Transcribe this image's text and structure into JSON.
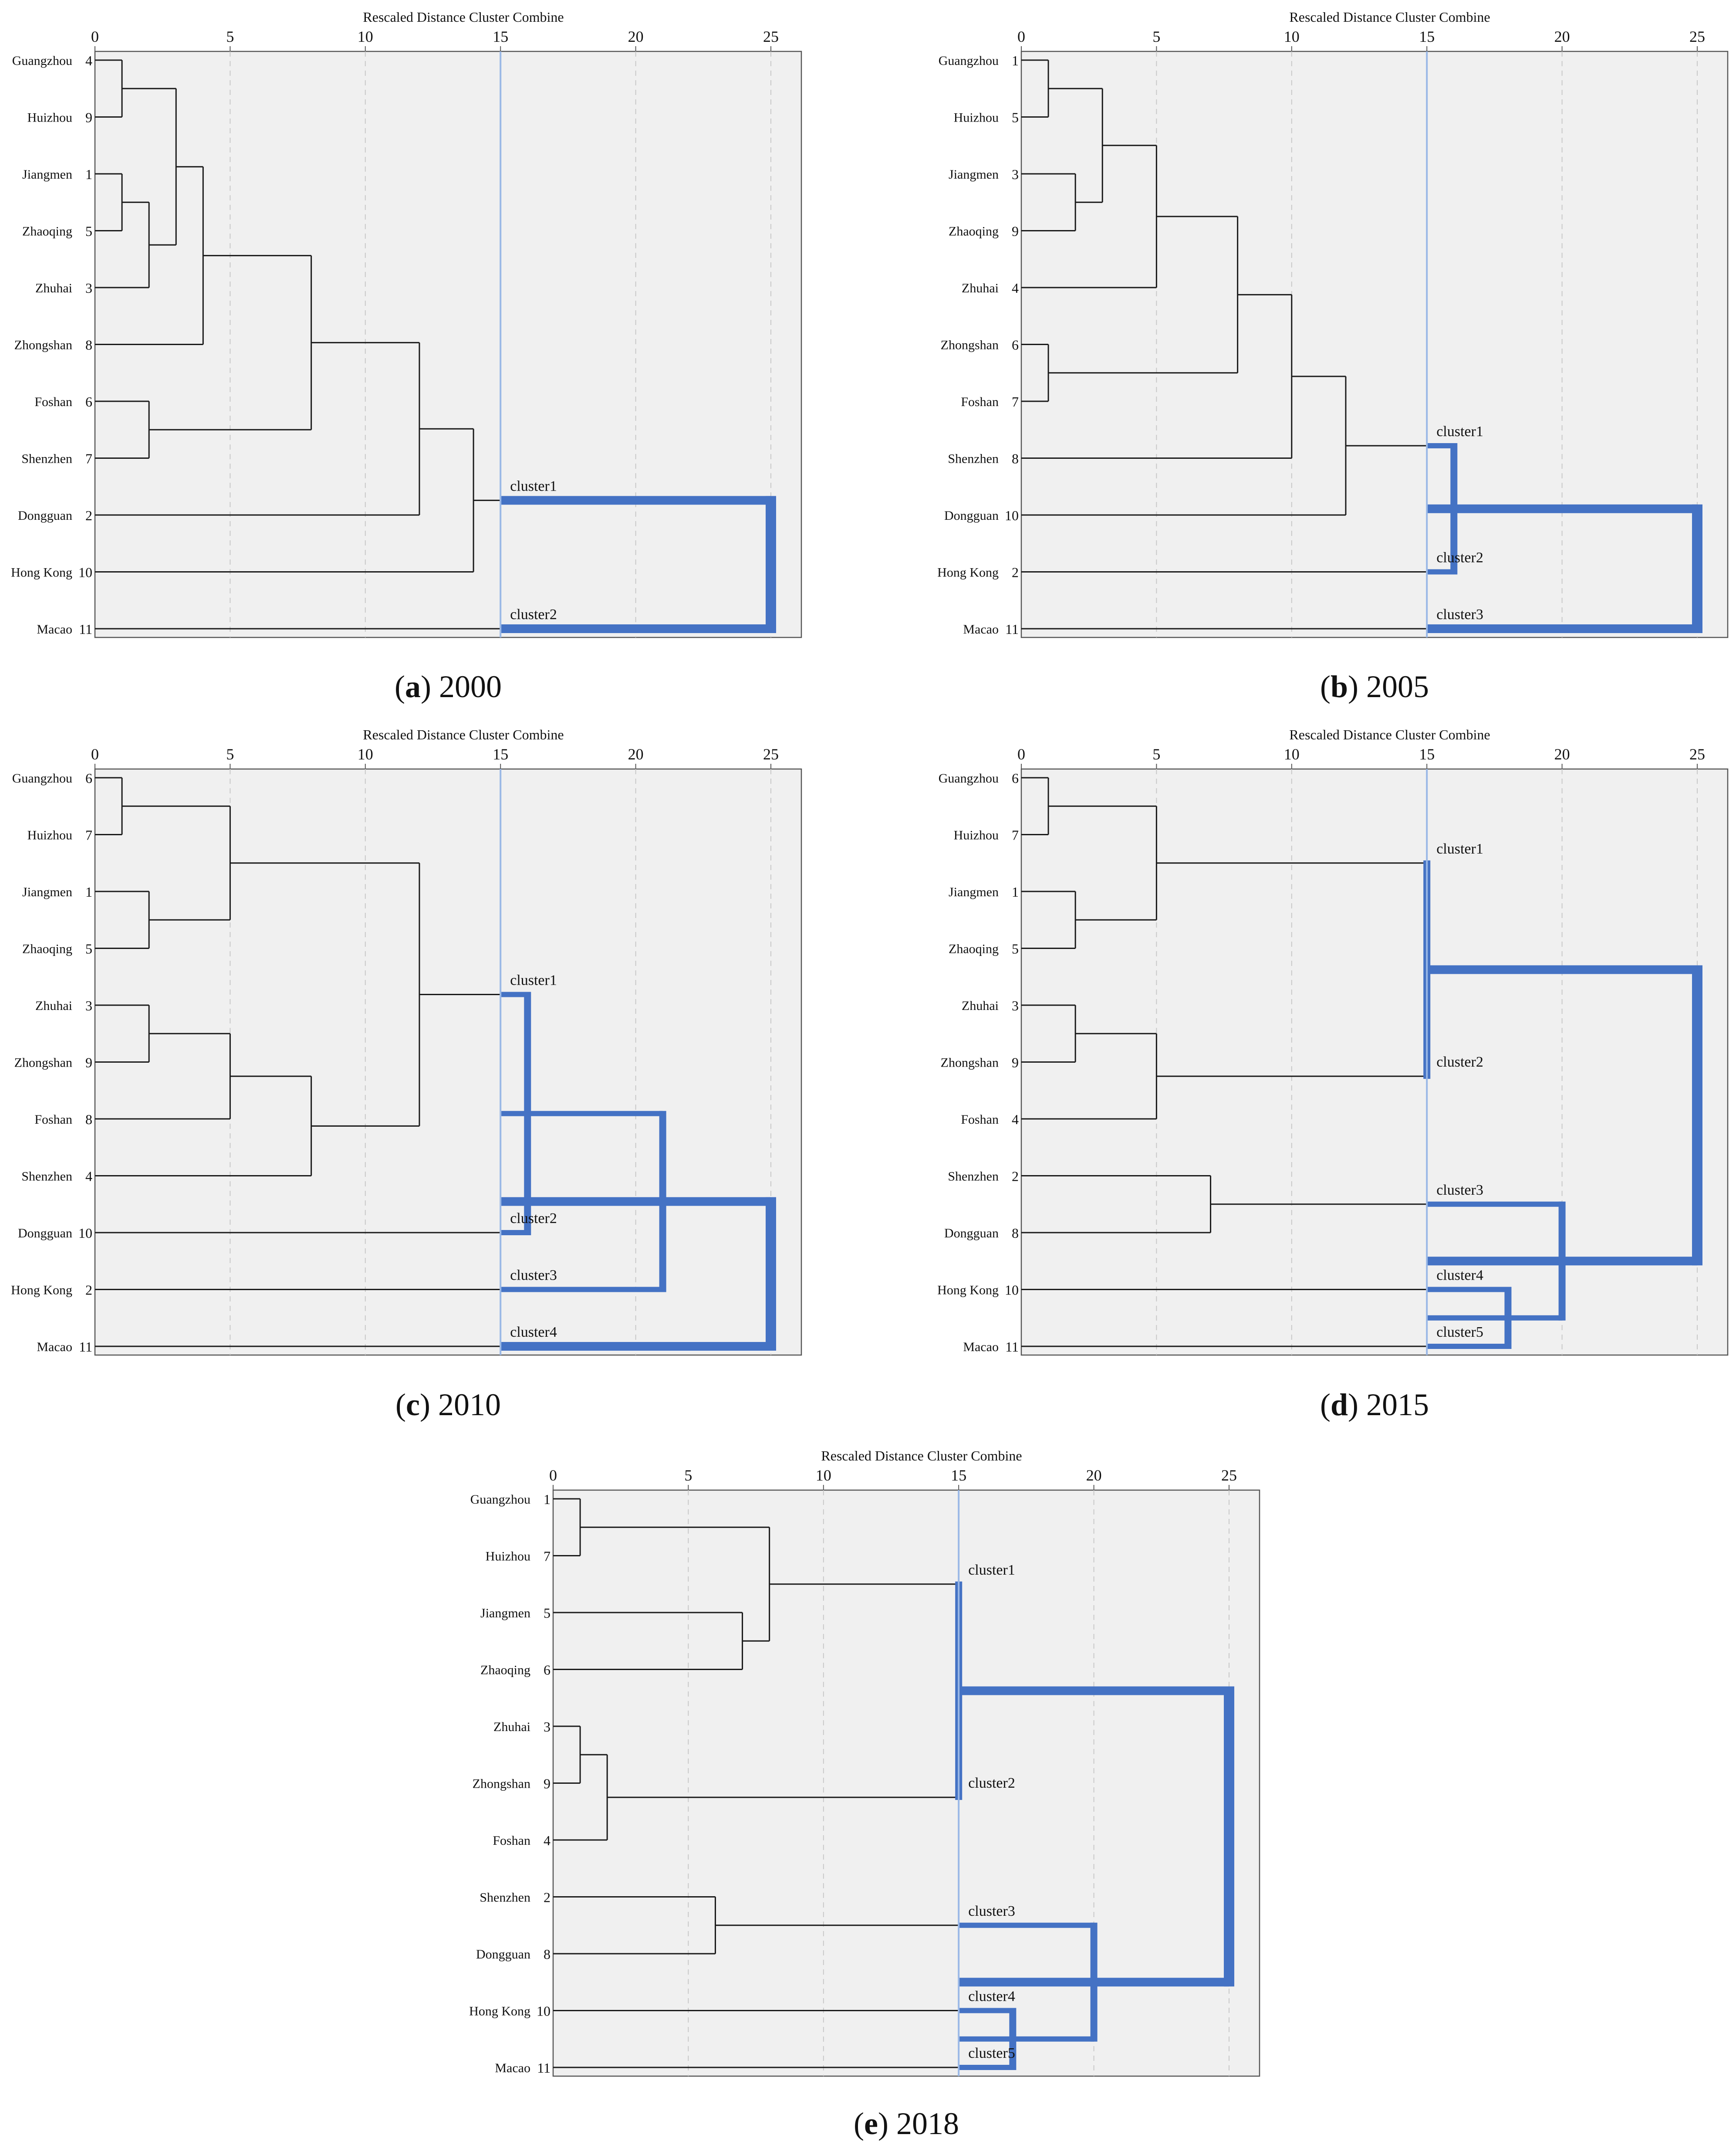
{
  "figure": {
    "type": "dendrogram_panels",
    "colors": {
      "plot_background": "#f0f0f0",
      "plot_border": "#555555",
      "black_link": "#1a1a1a",
      "cluster_link": "#4472c4",
      "cut_line": "#9ab8e6",
      "grid": "#c8c8c8",
      "text": "#111111"
    }
  },
  "chart_data": [
    {
      "type": "dendrogram",
      "panel_letter": "a",
      "panel_year": "2000",
      "title": "Rescaled Distance Cluster Combine",
      "xlim": [
        0,
        25
      ],
      "xticks": [
        "0",
        "5",
        "10",
        "15",
        "20",
        "25"
      ],
      "cut_value": 15,
      "leaves": [
        {
          "label": "Guangzhou",
          "id": "4"
        },
        {
          "label": "Huizhou",
          "id": "9"
        },
        {
          "label": "Jiangmen",
          "id": "1"
        },
        {
          "label": "Zhaoqing",
          "id": "5"
        },
        {
          "label": "Zhuhai",
          "id": "3"
        },
        {
          "label": "Zhongshan",
          "id": "8"
        },
        {
          "label": "Foshan",
          "id": "6"
        },
        {
          "label": "Shenzhen",
          "id": "7"
        },
        {
          "label": "Dongguan",
          "id": "2"
        },
        {
          "label": "Hong Kong",
          "id": "10"
        },
        {
          "label": "Macao",
          "id": "11"
        }
      ],
      "merges": [
        {
          "a": "L0",
          "b": "L1",
          "h": 1
        },
        {
          "a": "L2",
          "b": "L3",
          "h": 1
        },
        {
          "a": "M1",
          "b": "L4",
          "h": 2
        },
        {
          "a": "M0",
          "b": "M2",
          "h": 3
        },
        {
          "a": "M3",
          "b": "L5",
          "h": 4
        },
        {
          "a": "L6",
          "b": "L7",
          "h": 2
        },
        {
          "a": "M4",
          "b": "M5",
          "h": 8
        },
        {
          "a": "M6",
          "b": "L8",
          "h": 12
        },
        {
          "a": "M7",
          "b": "L9",
          "h": 14
        },
        {
          "a": "M8",
          "b": "L10",
          "h": 25,
          "style": "blue",
          "from": 15
        }
      ],
      "clusters": [
        {
          "label": "cluster1",
          "near": "M8"
        },
        {
          "label": "cluster2",
          "near": "L10"
        }
      ]
    },
    {
      "type": "dendrogram",
      "panel_letter": "b",
      "panel_year": "2005",
      "title": "Rescaled Distance Cluster Combine",
      "xlim": [
        0,
        25
      ],
      "xticks": [
        "0",
        "5",
        "10",
        "15",
        "20",
        "25"
      ],
      "cut_value": 15,
      "leaves": [
        {
          "label": "Guangzhou",
          "id": "1"
        },
        {
          "label": "Huizhou",
          "id": "5"
        },
        {
          "label": "Jiangmen",
          "id": "3"
        },
        {
          "label": "Zhaoqing",
          "id": "9"
        },
        {
          "label": "Zhuhai",
          "id": "4"
        },
        {
          "label": "Zhongshan",
          "id": "6"
        },
        {
          "label": "Foshan",
          "id": "7"
        },
        {
          "label": "Shenzhen",
          "id": "8"
        },
        {
          "label": "Dongguan",
          "id": "10"
        },
        {
          "label": "Hong Kong",
          "id": "2"
        },
        {
          "label": "Macao",
          "id": "11"
        }
      ],
      "merges": [
        {
          "a": "L0",
          "b": "L1",
          "h": 1
        },
        {
          "a": "L2",
          "b": "L3",
          "h": 2
        },
        {
          "a": "M0",
          "b": "M1",
          "h": 3
        },
        {
          "a": "M2",
          "b": "L4",
          "h": 5
        },
        {
          "a": "L5",
          "b": "L6",
          "h": 1
        },
        {
          "a": "M3",
          "b": "M4",
          "h": 8
        },
        {
          "a": "M5",
          "b": "L7",
          "h": 10
        },
        {
          "a": "M6",
          "b": "L8",
          "h": 12
        },
        {
          "a": "M7",
          "b": "L9",
          "h": 16,
          "style": "blue",
          "from": 15
        },
        {
          "a": "M8",
          "b": "L10",
          "h": 25,
          "style": "blue",
          "from": 15
        }
      ],
      "clusters": [
        {
          "label": "cluster1",
          "near": "M7"
        },
        {
          "label": "cluster2",
          "near": "L9"
        },
        {
          "label": "cluster3",
          "near": "L10"
        }
      ]
    },
    {
      "type": "dendrogram",
      "panel_letter": "c",
      "panel_year": "2010",
      "title": "Rescaled Distance Cluster Combine",
      "xlim": [
        0,
        25
      ],
      "xticks": [
        "0",
        "5",
        "10",
        "15",
        "20",
        "25"
      ],
      "cut_value": 15,
      "leaves": [
        {
          "label": "Guangzhou",
          "id": "6"
        },
        {
          "label": "Huizhou",
          "id": "7"
        },
        {
          "label": "Jiangmen",
          "id": "1"
        },
        {
          "label": "Zhaoqing",
          "id": "5"
        },
        {
          "label": "Zhuhai",
          "id": "3"
        },
        {
          "label": "Zhongshan",
          "id": "9"
        },
        {
          "label": "Foshan",
          "id": "8"
        },
        {
          "label": "Shenzhen",
          "id": "4"
        },
        {
          "label": "Dongguan",
          "id": "10"
        },
        {
          "label": "Hong Kong",
          "id": "2"
        },
        {
          "label": "Macao",
          "id": "11"
        }
      ],
      "merges": [
        {
          "a": "L0",
          "b": "L1",
          "h": 1
        },
        {
          "a": "L2",
          "b": "L3",
          "h": 2
        },
        {
          "a": "M0",
          "b": "M1",
          "h": 5
        },
        {
          "a": "L4",
          "b": "L5",
          "h": 2
        },
        {
          "a": "M3",
          "b": "L6",
          "h": 5
        },
        {
          "a": "M4",
          "b": "L7",
          "h": 8
        },
        {
          "a": "M2",
          "b": "M5",
          "h": 12
        },
        {
          "a": "M6",
          "b": "L8",
          "h": 16,
          "style": "blue",
          "from": 15
        },
        {
          "a": "M7",
          "b": "L9",
          "h": 21,
          "style": "blue",
          "from": 15
        },
        {
          "a": "M8",
          "b": "L10",
          "h": 25,
          "style": "blue",
          "from": 15
        }
      ],
      "clusters": [
        {
          "label": "cluster1",
          "near": "M6"
        },
        {
          "label": "cluster2",
          "near": "L8"
        },
        {
          "label": "cluster3",
          "near": "L9"
        },
        {
          "label": "cluster4",
          "near": "L10"
        }
      ]
    },
    {
      "type": "dendrogram",
      "panel_letter": "d",
      "panel_year": "2015",
      "title": "Rescaled Distance Cluster Combine",
      "xlim": [
        0,
        25
      ],
      "xticks": [
        "0",
        "5",
        "10",
        "15",
        "20",
        "25"
      ],
      "cut_value": 15,
      "leaves": [
        {
          "label": "Guangzhou",
          "id": "6"
        },
        {
          "label": "Huizhou",
          "id": "7"
        },
        {
          "label": "Jiangmen",
          "id": "1"
        },
        {
          "label": "Zhaoqing",
          "id": "5"
        },
        {
          "label": "Zhuhai",
          "id": "3"
        },
        {
          "label": "Zhongshan",
          "id": "9"
        },
        {
          "label": "Foshan",
          "id": "4"
        },
        {
          "label": "Shenzhen",
          "id": "2"
        },
        {
          "label": "Dongguan",
          "id": "8"
        },
        {
          "label": "Hong Kong",
          "id": "10"
        },
        {
          "label": "Macao",
          "id": "11"
        }
      ],
      "merges": [
        {
          "a": "L0",
          "b": "L1",
          "h": 1
        },
        {
          "a": "L2",
          "b": "L3",
          "h": 2
        },
        {
          "a": "M0",
          "b": "M1",
          "h": 5
        },
        {
          "a": "L4",
          "b": "L5",
          "h": 2
        },
        {
          "a": "M3",
          "b": "L6",
          "h": 5
        },
        {
          "a": "M2",
          "b": "M4",
          "h": 15,
          "style": "blue",
          "from": 15
        },
        {
          "a": "L7",
          "b": "L8",
          "h": 7
        },
        {
          "a": "L9",
          "b": "L10",
          "h": 18,
          "style": "blue",
          "from": 15
        },
        {
          "a": "M6",
          "b": "M7",
          "h": 20,
          "style": "blue",
          "from": 15
        },
        {
          "a": "M5",
          "b": "M8",
          "h": 25,
          "style": "blue",
          "from": 15
        }
      ],
      "clusters": [
        {
          "label": "cluster1",
          "near": "M2"
        },
        {
          "label": "cluster2",
          "near": "M4"
        },
        {
          "label": "cluster3",
          "near": "M6"
        },
        {
          "label": "cluster4",
          "near": "L9"
        },
        {
          "label": "cluster5",
          "near": "L10"
        }
      ]
    },
    {
      "type": "dendrogram",
      "panel_letter": "e",
      "panel_year": "2018",
      "title": "Rescaled Distance Cluster Combine",
      "xlim": [
        0,
        25
      ],
      "xticks": [
        "0",
        "5",
        "10",
        "15",
        "20",
        "25"
      ],
      "cut_value": 15,
      "leaves": [
        {
          "label": "Guangzhou",
          "id": "1"
        },
        {
          "label": "Huizhou",
          "id": "7"
        },
        {
          "label": "Jiangmen",
          "id": "5"
        },
        {
          "label": "Zhaoqing",
          "id": "6"
        },
        {
          "label": "Zhuhai",
          "id": "3"
        },
        {
          "label": "Zhongshan",
          "id": "9"
        },
        {
          "label": "Foshan",
          "id": "4"
        },
        {
          "label": "Shenzhen",
          "id": "2"
        },
        {
          "label": "Dongguan",
          "id": "8"
        },
        {
          "label": "Hong Kong",
          "id": "10"
        },
        {
          "label": "Macao",
          "id": "11"
        }
      ],
      "merges": [
        {
          "a": "L0",
          "b": "L1",
          "h": 1
        },
        {
          "a": "L2",
          "b": "L3",
          "h": 7
        },
        {
          "a": "M0",
          "b": "M1",
          "h": 8
        },
        {
          "a": "L4",
          "b": "L5",
          "h": 1
        },
        {
          "a": "M3",
          "b": "L6",
          "h": 2
        },
        {
          "a": "M2",
          "b": "M4",
          "h": 15,
          "style": "blue",
          "from": 15
        },
        {
          "a": "L7",
          "b": "L8",
          "h": 6
        },
        {
          "a": "L9",
          "b": "L10",
          "h": 17,
          "style": "blue",
          "from": 15
        },
        {
          "a": "M6",
          "b": "M7",
          "h": 20,
          "style": "blue",
          "from": 15
        },
        {
          "a": "M5",
          "b": "M8",
          "h": 25,
          "style": "blue",
          "from": 15
        }
      ],
      "clusters": [
        {
          "label": "cluster1",
          "near": "M2"
        },
        {
          "label": "cluster2",
          "near": "M4"
        },
        {
          "label": "cluster3",
          "near": "M6"
        },
        {
          "label": "cluster4",
          "near": "L9"
        },
        {
          "label": "cluster5",
          "near": "L10"
        }
      ]
    }
  ]
}
